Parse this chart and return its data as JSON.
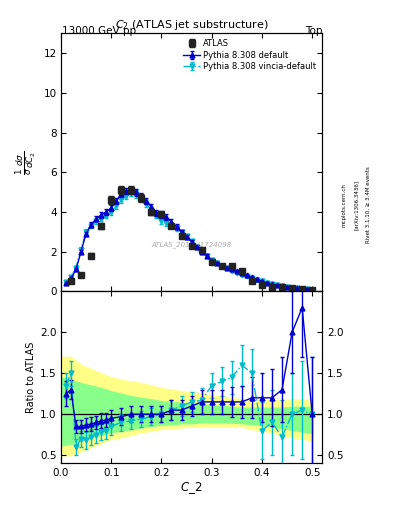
{
  "title_top": "13000 GeV pp",
  "title_top_right": "Top",
  "main_title": "$C_2$ (ATLAS jet substructure)",
  "xlabel": "C_2",
  "ylabel_ratio": "Ratio to ATLAS",
  "watermark": "ATLAS_2019_I1724098",
  "rivet_label": "Rivet 3.1.10, ≥ 3.4M events",
  "arxiv_label": "[arXiv:1306.3436]",
  "mcplots_label": "mcplots.cern.ch",
  "atlas_x": [
    0.02,
    0.04,
    0.06,
    0.08,
    0.1,
    0.12,
    0.14,
    0.16,
    0.18,
    0.2,
    0.22,
    0.24,
    0.26,
    0.28,
    0.3,
    0.32,
    0.34,
    0.36,
    0.38,
    0.4,
    0.42,
    0.44,
    0.46,
    0.48,
    0.5
  ],
  "atlas_y": [
    0.5,
    0.8,
    1.8,
    3.3,
    4.6,
    5.1,
    5.1,
    4.7,
    4.0,
    3.9,
    3.3,
    2.8,
    2.3,
    2.1,
    1.5,
    1.3,
    1.3,
    1.0,
    0.5,
    0.3,
    0.2,
    0.2,
    0.15,
    0.1,
    0.05
  ],
  "atlas_yerr": [
    0.05,
    0.08,
    0.12,
    0.15,
    0.18,
    0.2,
    0.2,
    0.18,
    0.15,
    0.15,
    0.12,
    0.12,
    0.1,
    0.1,
    0.08,
    0.08,
    0.08,
    0.08,
    0.06,
    0.04,
    0.04,
    0.04,
    0.04,
    0.03,
    0.03
  ],
  "py8d_x": [
    0.01,
    0.02,
    0.03,
    0.04,
    0.05,
    0.06,
    0.07,
    0.08,
    0.09,
    0.1,
    0.11,
    0.12,
    0.13,
    0.14,
    0.15,
    0.16,
    0.17,
    0.18,
    0.19,
    0.2,
    0.21,
    0.22,
    0.23,
    0.24,
    0.25,
    0.26,
    0.27,
    0.28,
    0.29,
    0.3,
    0.31,
    0.32,
    0.33,
    0.34,
    0.35,
    0.36,
    0.37,
    0.38,
    0.39,
    0.4,
    0.41,
    0.42,
    0.43,
    0.44,
    0.45,
    0.46,
    0.47,
    0.48,
    0.49,
    0.5
  ],
  "py8d_y": [
    0.4,
    0.65,
    1.1,
    2.0,
    2.9,
    3.35,
    3.65,
    3.85,
    4.0,
    4.2,
    4.55,
    4.9,
    5.05,
    5.1,
    5.0,
    4.8,
    4.55,
    4.25,
    3.95,
    3.85,
    3.75,
    3.5,
    3.25,
    3.0,
    2.75,
    2.5,
    2.25,
    2.0,
    1.8,
    1.55,
    1.42,
    1.3,
    1.2,
    1.1,
    1.0,
    0.9,
    0.8,
    0.7,
    0.6,
    0.5,
    0.42,
    0.36,
    0.3,
    0.25,
    0.21,
    0.18,
    0.15,
    0.12,
    0.1,
    0.08
  ],
  "py8d_yerr": [
    0.04,
    0.05,
    0.07,
    0.09,
    0.11,
    0.12,
    0.13,
    0.14,
    0.14,
    0.15,
    0.16,
    0.17,
    0.17,
    0.18,
    0.18,
    0.17,
    0.16,
    0.15,
    0.14,
    0.14,
    0.14,
    0.13,
    0.12,
    0.11,
    0.1,
    0.09,
    0.09,
    0.08,
    0.08,
    0.07,
    0.06,
    0.06,
    0.05,
    0.05,
    0.05,
    0.04,
    0.04,
    0.04,
    0.03,
    0.03,
    0.03,
    0.03,
    0.02,
    0.02,
    0.02,
    0.02,
    0.02,
    0.01,
    0.01,
    0.01
  ],
  "py8v_x": [
    0.01,
    0.02,
    0.03,
    0.04,
    0.05,
    0.06,
    0.07,
    0.08,
    0.09,
    0.1,
    0.11,
    0.12,
    0.13,
    0.14,
    0.15,
    0.16,
    0.17,
    0.18,
    0.19,
    0.2,
    0.21,
    0.22,
    0.23,
    0.24,
    0.25,
    0.26,
    0.27,
    0.28,
    0.29,
    0.3,
    0.31,
    0.32,
    0.33,
    0.34,
    0.35,
    0.36,
    0.37,
    0.38,
    0.39,
    0.4,
    0.41,
    0.42,
    0.43,
    0.44,
    0.45,
    0.46,
    0.47,
    0.48,
    0.49,
    0.5
  ],
  "py8v_y": [
    0.45,
    0.72,
    1.2,
    2.1,
    3.0,
    3.3,
    3.52,
    3.65,
    3.82,
    4.0,
    4.28,
    4.6,
    4.8,
    4.98,
    4.9,
    4.72,
    4.42,
    4.1,
    3.82,
    3.52,
    3.42,
    3.3,
    3.18,
    2.98,
    2.78,
    2.52,
    2.22,
    2.0,
    1.8,
    1.58,
    1.42,
    1.3,
    1.18,
    1.0,
    0.9,
    0.8,
    0.75,
    0.68,
    0.55,
    0.5,
    0.42,
    0.36,
    0.3,
    0.25,
    0.22,
    0.18,
    0.15,
    0.12,
    0.1,
    0.08
  ],
  "py8v_yerr": [
    0.04,
    0.06,
    0.08,
    0.11,
    0.12,
    0.12,
    0.13,
    0.13,
    0.14,
    0.14,
    0.15,
    0.16,
    0.17,
    0.18,
    0.18,
    0.17,
    0.16,
    0.15,
    0.14,
    0.13,
    0.13,
    0.12,
    0.12,
    0.11,
    0.1,
    0.09,
    0.08,
    0.08,
    0.07,
    0.07,
    0.06,
    0.06,
    0.05,
    0.05,
    0.04,
    0.04,
    0.04,
    0.04,
    0.03,
    0.03,
    0.03,
    0.03,
    0.02,
    0.02,
    0.02,
    0.02,
    0.02,
    0.01,
    0.01,
    0.01
  ],
  "rd_x": [
    0.01,
    0.02,
    0.03,
    0.04,
    0.05,
    0.06,
    0.07,
    0.08,
    0.09,
    0.1,
    0.12,
    0.14,
    0.16,
    0.18,
    0.2,
    0.22,
    0.24,
    0.26,
    0.28,
    0.3,
    0.32,
    0.34,
    0.36,
    0.38,
    0.4,
    0.42,
    0.44,
    0.46,
    0.48,
    0.5
  ],
  "rd_y": [
    1.25,
    1.3,
    0.85,
    0.85,
    0.87,
    0.88,
    0.9,
    0.92,
    0.93,
    0.95,
    0.97,
    1.0,
    1.0,
    1.0,
    1.0,
    1.05,
    1.05,
    1.1,
    1.15,
    1.15,
    1.15,
    1.15,
    1.15,
    1.2,
    1.2,
    1.2,
    1.3,
    2.0,
    2.3,
    1.0
  ],
  "rd_yerr": [
    0.15,
    0.12,
    0.08,
    0.08,
    0.08,
    0.08,
    0.08,
    0.09,
    0.09,
    0.1,
    0.1,
    0.1,
    0.1,
    0.1,
    0.1,
    0.12,
    0.12,
    0.12,
    0.15,
    0.15,
    0.15,
    0.18,
    0.2,
    0.25,
    0.3,
    0.35,
    0.4,
    0.5,
    0.6,
    0.7
  ],
  "rv_x": [
    0.01,
    0.02,
    0.03,
    0.04,
    0.05,
    0.06,
    0.07,
    0.08,
    0.09,
    0.1,
    0.12,
    0.14,
    0.16,
    0.18,
    0.2,
    0.22,
    0.24,
    0.26,
    0.28,
    0.3,
    0.32,
    0.34,
    0.36,
    0.38,
    0.4,
    0.42,
    0.44,
    0.46,
    0.48,
    0.5
  ],
  "rv_y": [
    1.35,
    1.5,
    0.6,
    0.7,
    0.68,
    0.72,
    0.75,
    0.78,
    0.8,
    0.85,
    0.9,
    0.92,
    0.94,
    0.97,
    1.0,
    1.05,
    1.1,
    1.15,
    1.17,
    1.35,
    1.4,
    1.45,
    1.6,
    1.5,
    0.8,
    0.9,
    0.72,
    1.0,
    1.05,
    1.0
  ],
  "rv_yerr": [
    0.15,
    0.15,
    0.1,
    0.1,
    0.1,
    0.1,
    0.1,
    0.1,
    0.1,
    0.1,
    0.1,
    0.1,
    0.1,
    0.1,
    0.1,
    0.12,
    0.12,
    0.12,
    0.15,
    0.15,
    0.18,
    0.2,
    0.25,
    0.3,
    0.35,
    0.4,
    0.45,
    0.5,
    0.6,
    0.7
  ],
  "by_x": [
    0.0,
    0.02,
    0.04,
    0.06,
    0.08,
    0.1,
    0.12,
    0.14,
    0.16,
    0.18,
    0.2,
    0.22,
    0.24,
    0.26,
    0.28,
    0.3,
    0.32,
    0.34,
    0.36,
    0.38,
    0.4,
    0.42,
    0.44,
    0.46,
    0.48,
    0.5
  ],
  "by_lo": [
    0.5,
    0.5,
    0.55,
    0.6,
    0.65,
    0.7,
    0.72,
    0.75,
    0.78,
    0.8,
    0.82,
    0.83,
    0.84,
    0.85,
    0.85,
    0.85,
    0.85,
    0.85,
    0.85,
    0.82,
    0.8,
    0.78,
    0.75,
    0.72,
    0.7,
    0.68
  ],
  "by_hi": [
    1.7,
    1.7,
    1.6,
    1.55,
    1.5,
    1.45,
    1.42,
    1.4,
    1.38,
    1.35,
    1.32,
    1.3,
    1.28,
    1.27,
    1.25,
    1.23,
    1.22,
    1.2,
    1.18,
    1.17,
    1.17,
    1.17,
    1.17,
    1.18,
    1.18,
    1.18
  ],
  "bg_x": [
    0.0,
    0.02,
    0.04,
    0.06,
    0.08,
    0.1,
    0.12,
    0.14,
    0.16,
    0.18,
    0.2,
    0.22,
    0.24,
    0.26,
    0.28,
    0.3,
    0.32,
    0.34,
    0.36,
    0.38,
    0.4,
    0.42,
    0.44,
    0.46,
    0.48,
    0.5
  ],
  "bg_lo": [
    0.62,
    0.64,
    0.68,
    0.72,
    0.75,
    0.78,
    0.8,
    0.82,
    0.84,
    0.86,
    0.87,
    0.88,
    0.89,
    0.89,
    0.9,
    0.9,
    0.9,
    0.9,
    0.89,
    0.88,
    0.87,
    0.85,
    0.83,
    0.81,
    0.79,
    0.77
  ],
  "bg_hi": [
    1.45,
    1.42,
    1.38,
    1.35,
    1.32,
    1.28,
    1.25,
    1.22,
    1.2,
    1.18,
    1.16,
    1.15,
    1.14,
    1.13,
    1.12,
    1.11,
    1.1,
    1.09,
    1.08,
    1.08,
    1.08,
    1.08,
    1.08,
    1.09,
    1.09,
    1.09
  ],
  "color_atlas": "#222222",
  "color_default": "#0000cc",
  "color_vincia": "#00bbcc",
  "color_yellow": "#ffff88",
  "color_green": "#88ff88",
  "ylim_main": [
    0,
    13
  ],
  "ylim_ratio": [
    0.4,
    2.5
  ],
  "xlim": [
    0.0,
    0.52
  ],
  "yticks_main": [
    0,
    2,
    4,
    6,
    8,
    10,
    12
  ],
  "yticks_ratio": [
    0.5,
    1.0,
    1.5,
    2.0
  ],
  "xticks": [
    0.0,
    0.1,
    0.2,
    0.3,
    0.4,
    0.5
  ]
}
